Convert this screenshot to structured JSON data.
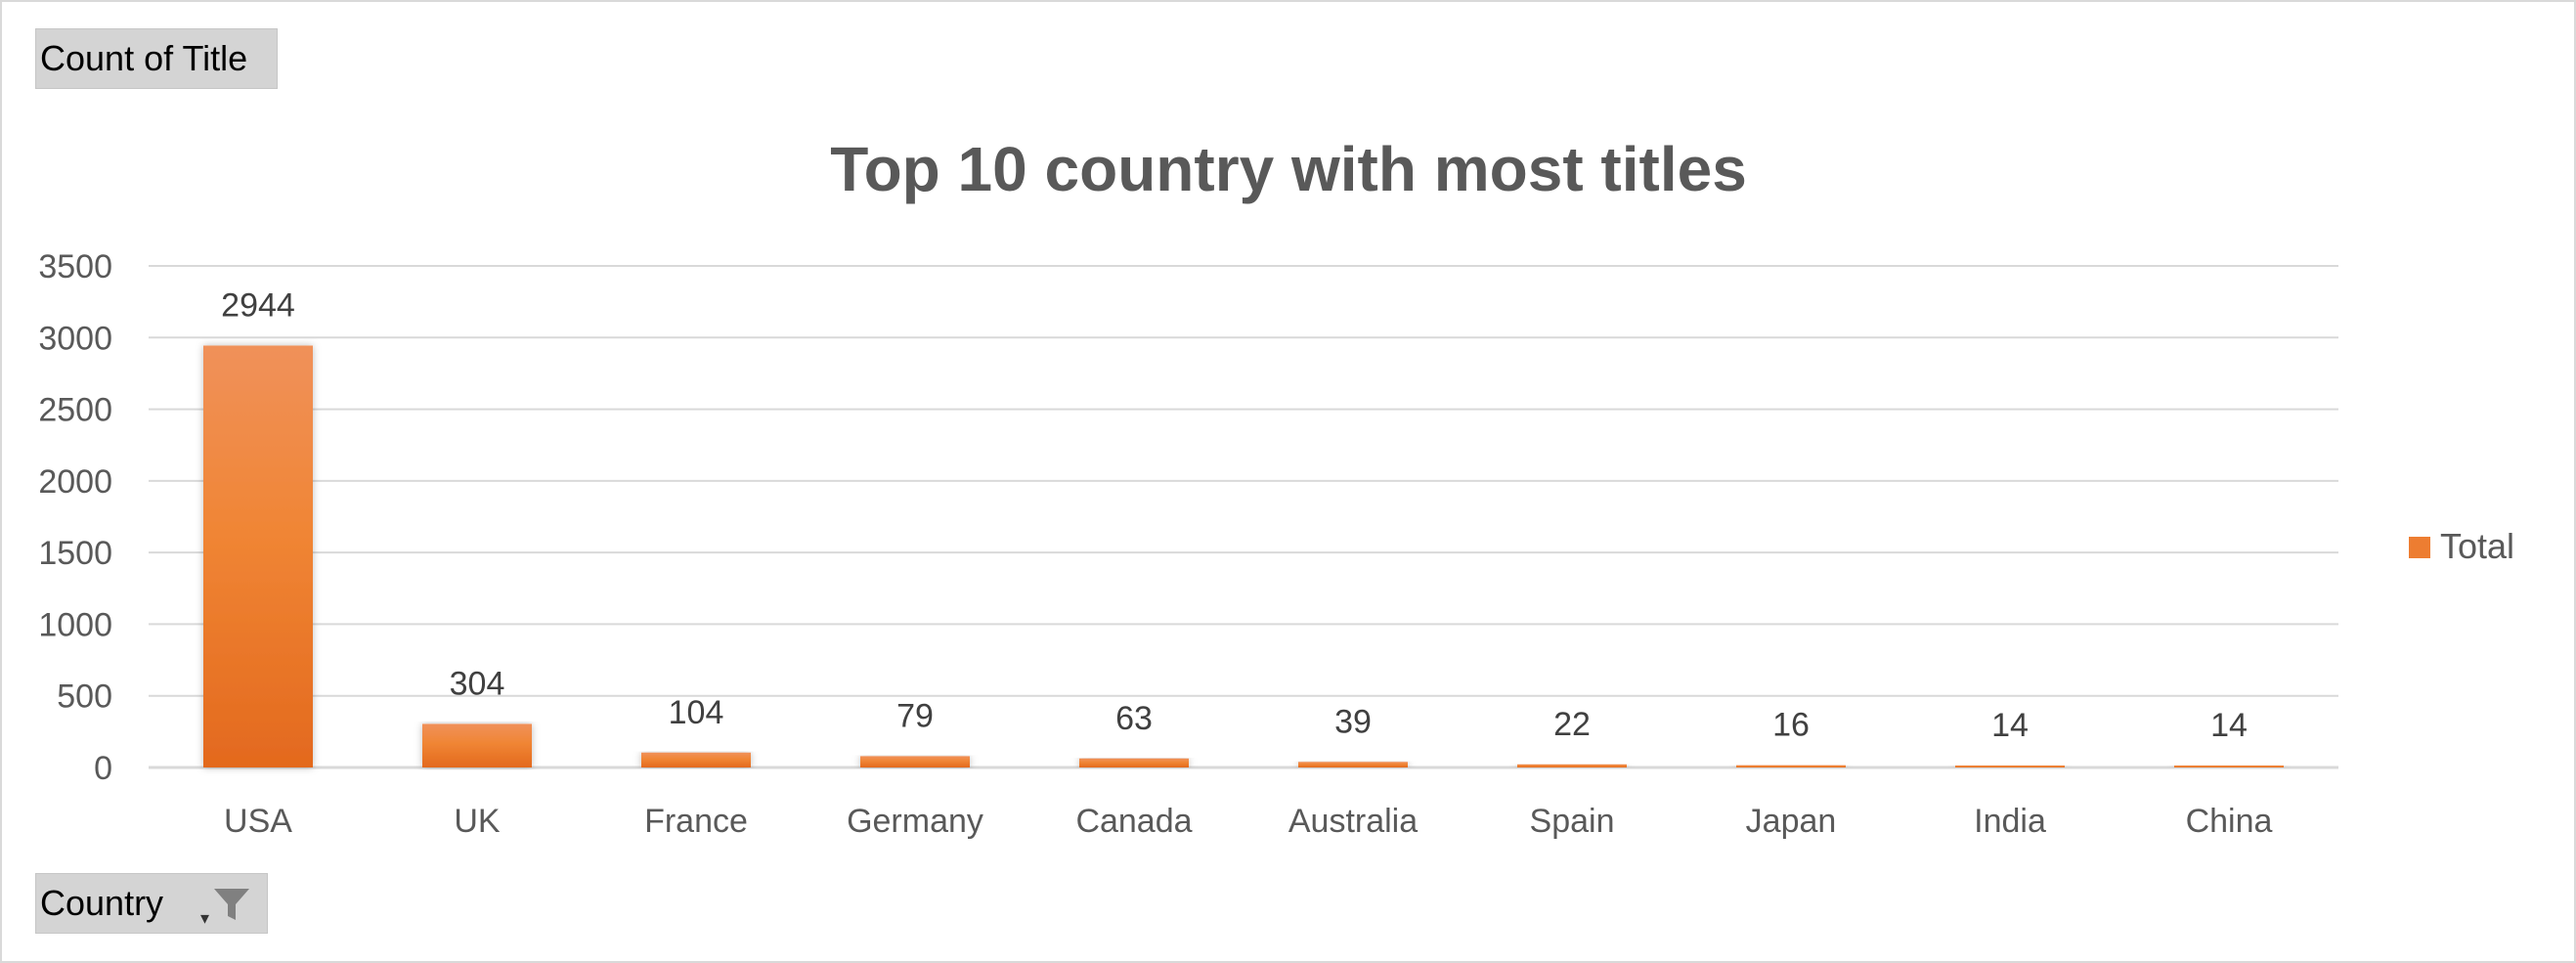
{
  "value_field": {
    "label": "Count of Title"
  },
  "axis_field": {
    "label": "Country",
    "dropdown_icon": "dropdown-arrow",
    "filter_icon": "funnel-filter-icon"
  },
  "legend": {
    "label": "Total",
    "position": "right"
  },
  "colors": {
    "bar_light": "#F0915A",
    "bar_dark": "#E3691E",
    "legend_swatch": "#ED7D31",
    "gridline": "#D9D9D9",
    "text": "#595959"
  },
  "chart_data": {
    "type": "bar",
    "title": "Top 10 country with most titles",
    "categories": [
      "USA",
      "UK",
      "France",
      "Germany",
      "Canada",
      "Australia",
      "Spain",
      "Japan",
      "India",
      "China"
    ],
    "series": [
      {
        "name": "Total",
        "values": [
          2944,
          304,
          104,
          79,
          63,
          39,
          22,
          16,
          14,
          14
        ]
      }
    ],
    "data_labels": [
      "2944",
      "304",
      "104",
      "79",
      "63",
      "39",
      "22",
      "16",
      "14",
      "14"
    ],
    "y_ticks": [
      "0",
      "500",
      "1000",
      "1500",
      "2000",
      "2500",
      "3000",
      "3500"
    ],
    "ylim": [
      0,
      3500
    ],
    "grid": true
  }
}
